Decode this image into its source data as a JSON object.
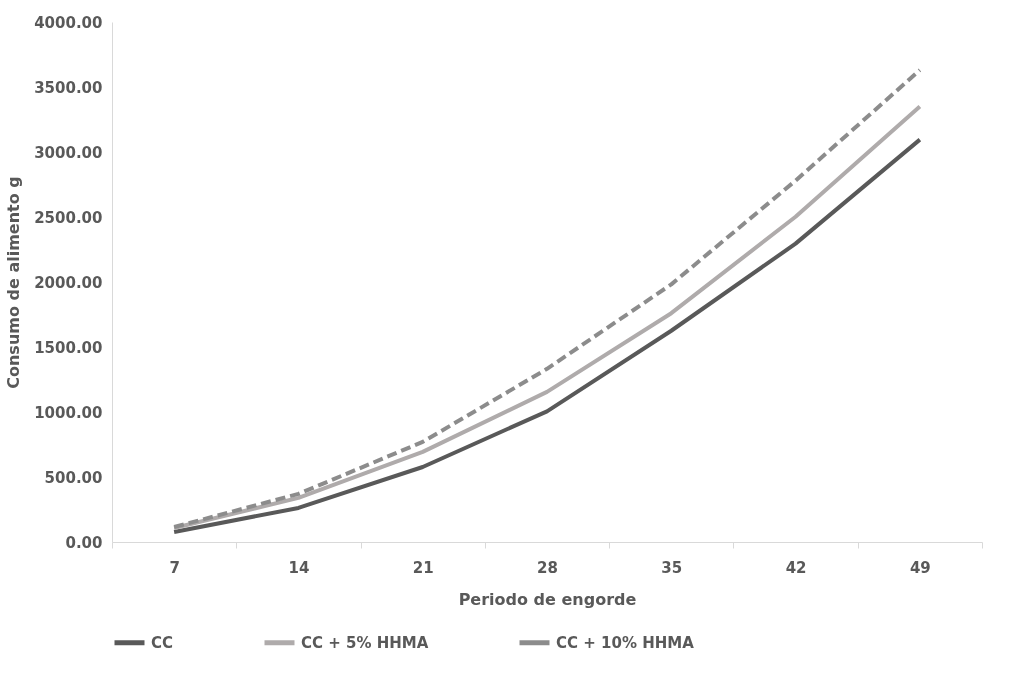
{
  "chart_data": {
    "type": "line",
    "xlabel": "Periodo de engorde",
    "ylabel": "Consumo de alimento g",
    "categories": [
      "7",
      "14",
      "21",
      "28",
      "35",
      "42",
      "49"
    ],
    "series": [
      {
        "name": "CC",
        "color": "#595959",
        "line_style": "solid",
        "values": [
          77,
          262,
          577,
          1005,
          1625,
          2295,
          3095
        ]
      },
      {
        "name": "CC + 5% HHMA",
        "color": "#afabab",
        "line_style": "solid",
        "values": [
          108,
          339,
          693,
          1155,
          1760,
          2502,
          3350
        ]
      },
      {
        "name": "CC + 10% HHMA",
        "color": "#8c8c8c",
        "line_style": "dashed",
        "values": [
          115,
          370,
          770,
          1332,
          1982,
          2780,
          3630
        ]
      }
    ],
    "ylim": [
      0,
      4000
    ],
    "yticks": [
      {
        "value": 0,
        "label": "0.00"
      },
      {
        "value": 500,
        "label": "500.00"
      },
      {
        "value": 1000,
        "label": "1000.00"
      },
      {
        "value": 1500,
        "label": "1500.00"
      },
      {
        "value": 2000,
        "label": "2000.00"
      },
      {
        "value": 2500,
        "label": "2500.00"
      },
      {
        "value": 3000,
        "label": "3000.00"
      },
      {
        "value": 3500,
        "label": "3500.00"
      },
      {
        "value": 4000,
        "label": "4000.00"
      }
    ],
    "grid": false,
    "legend": "bottom",
    "marker": "none"
  }
}
